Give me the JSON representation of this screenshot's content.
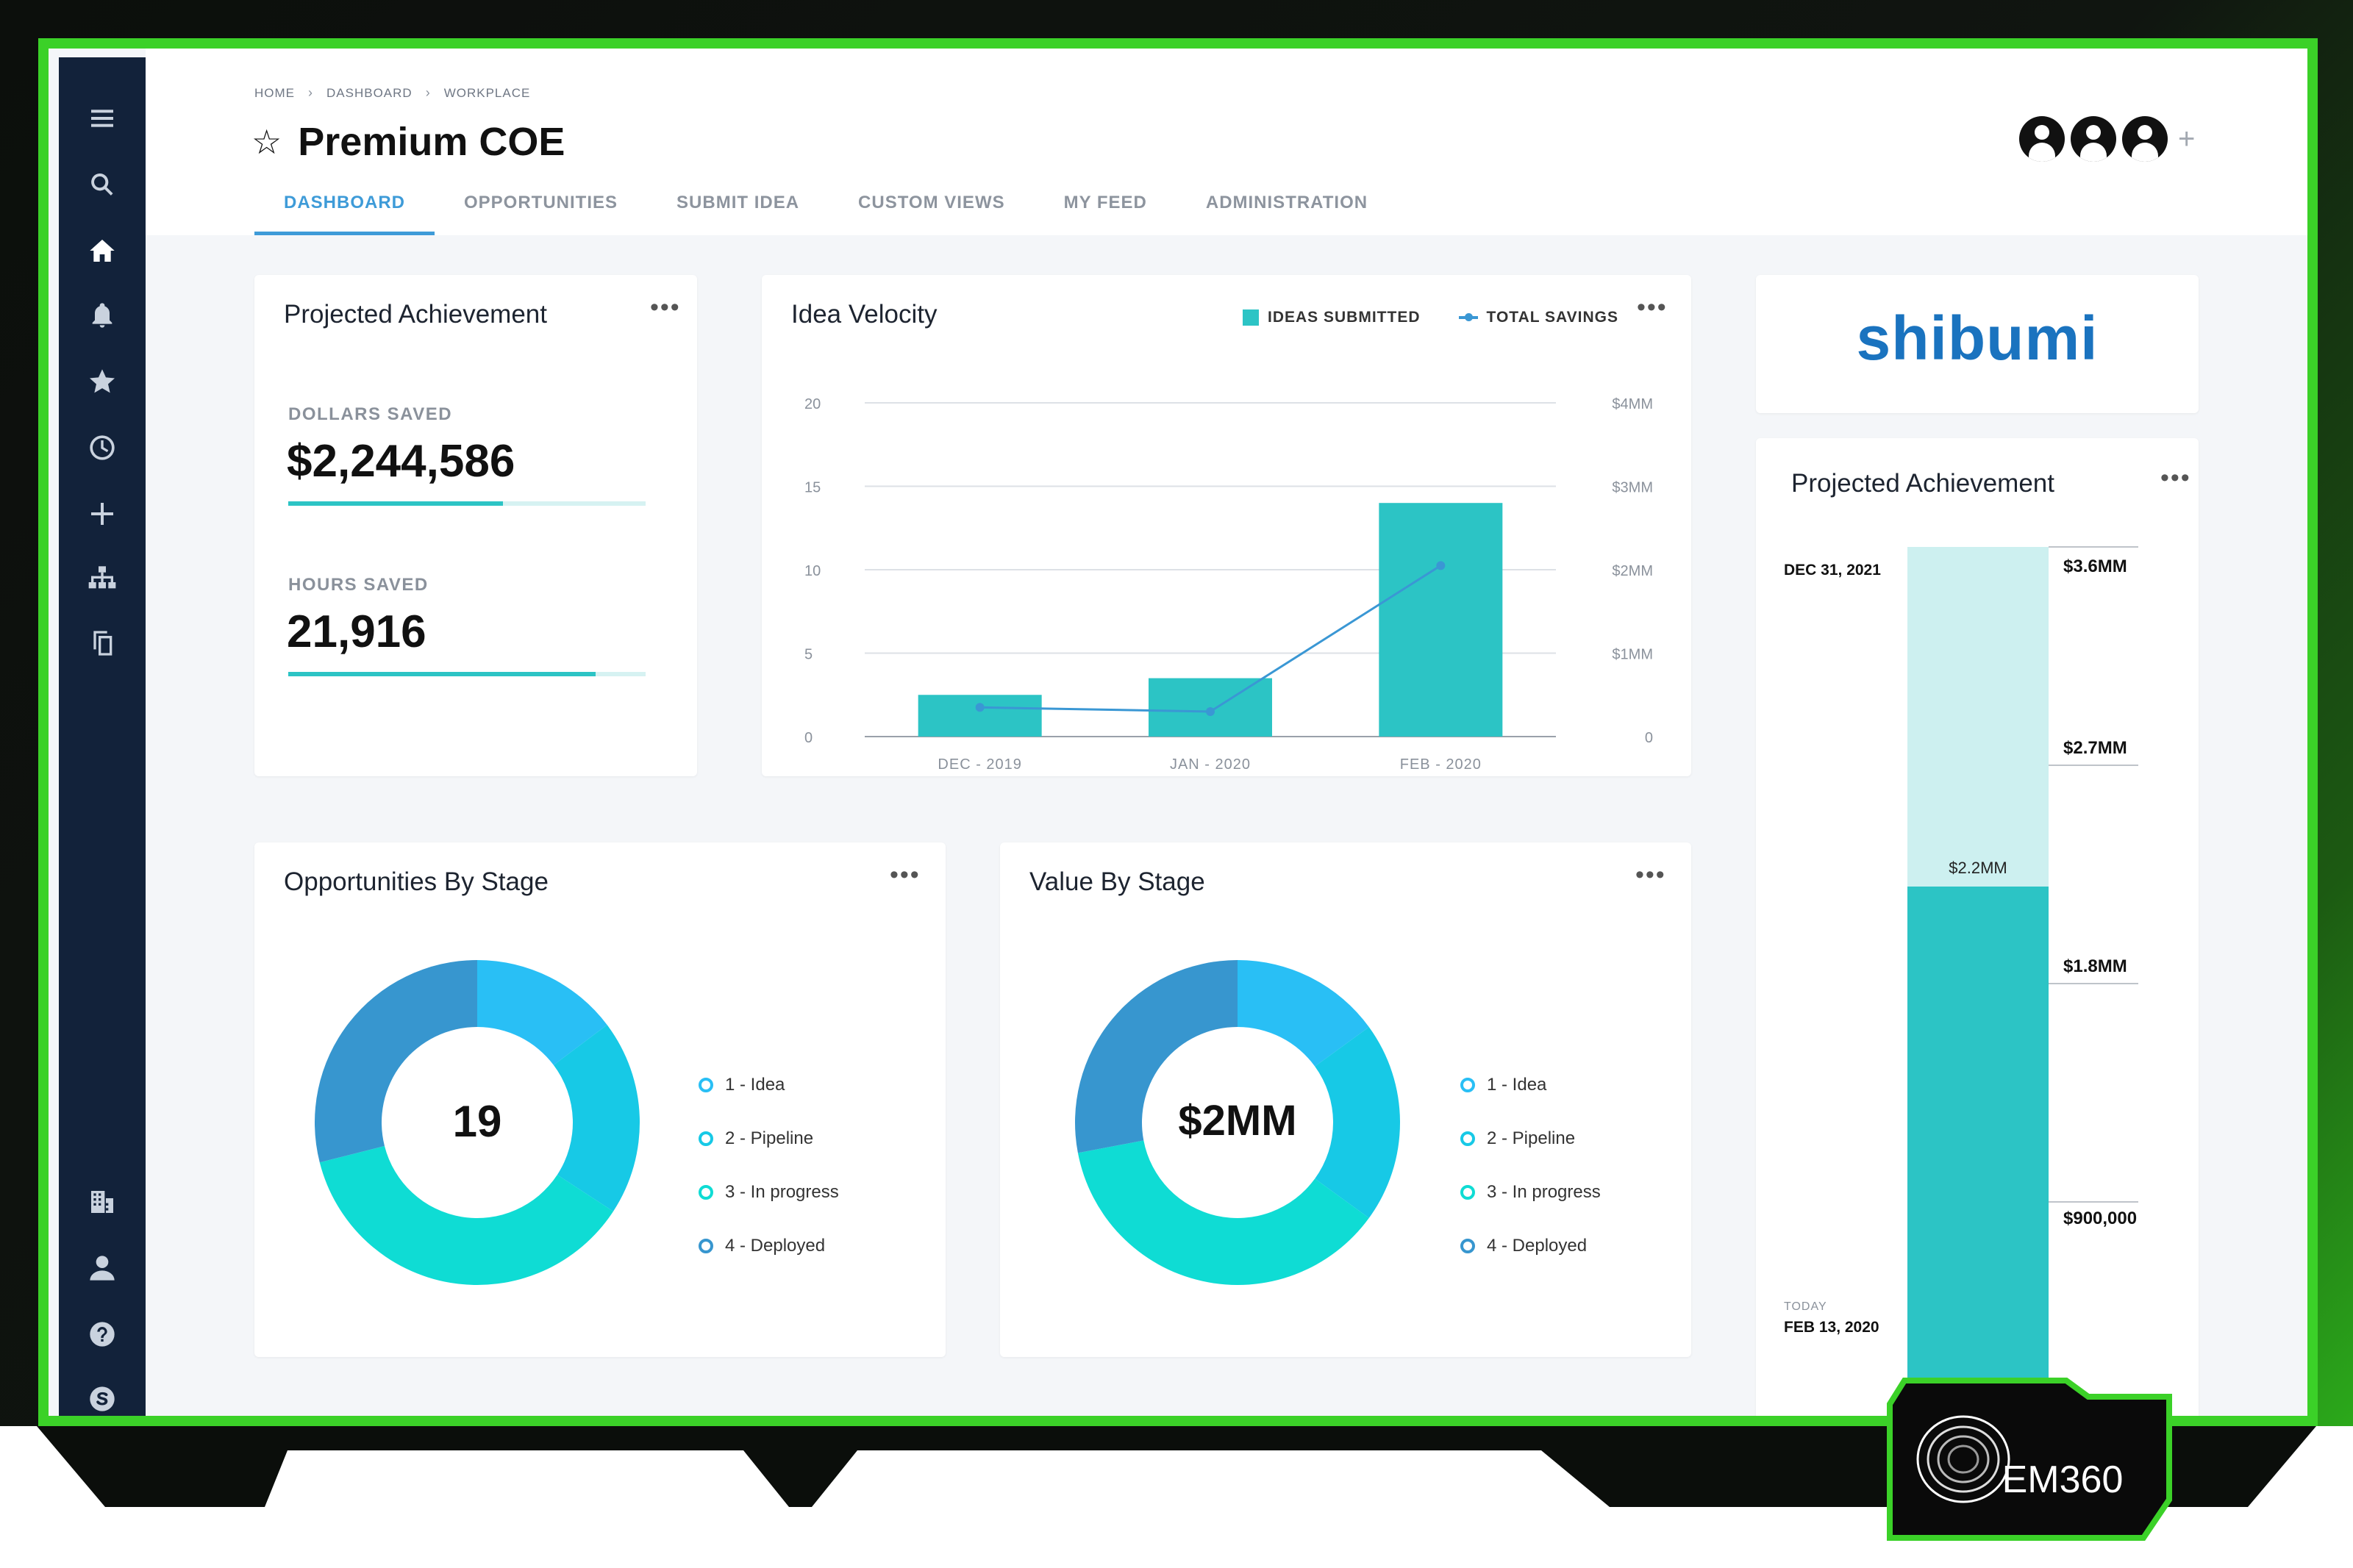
{
  "breadcrumb": [
    "HOME",
    "DASHBOARD",
    "WORKPLACE"
  ],
  "page_title": "Premium COE",
  "tabs": [
    "DASHBOARD",
    "OPPORTUNITIES",
    "SUBMIT IDEA",
    "CUSTOM VIEWS",
    "MY FEED",
    "ADMINISTRATION"
  ],
  "active_tab": "DASHBOARD",
  "sidebar_top_icons": [
    "menu-icon",
    "search-icon",
    "home-icon",
    "bell-icon",
    "star-icon",
    "clock-icon",
    "plus-icon",
    "org-chart-icon",
    "copy-icon"
  ],
  "sidebar_bottom_icons": [
    "building-icon",
    "user-icon",
    "help-icon",
    "skype-icon"
  ],
  "projected": {
    "title": "Projected Achievement",
    "dollars_label": "DOLLARS SAVED",
    "dollars_value": "$2,244,586",
    "dollars_progress": 0.6,
    "hours_label": "HOURS SAVED",
    "hours_value": "21,916",
    "hours_progress": 0.86
  },
  "velocity": {
    "title": "Idea Velocity",
    "legend_bar": "IDEAS SUBMITTED",
    "legend_line": "TOTAL SAVINGS"
  },
  "logo_text": "shibumi",
  "projected_right": {
    "title": "Projected Achievement",
    "target_date": "DEC 31, 2021",
    "today_label": "TODAY",
    "today_date": "FEB 13, 2020",
    "current_label": "$2.2MM",
    "scale_labels": [
      "$3.6MM",
      "$2.7MM",
      "$1.8MM",
      "$900,000"
    ],
    "target_value": 3.6,
    "current_value": 2.2
  },
  "opps_by_stage": {
    "title": "Opportunities By Stage",
    "center": "19"
  },
  "value_by_stage": {
    "title": "Value By Stage",
    "center": "$2MM"
  },
  "stage_legend": [
    "1 - Idea",
    "2 - Pipeline",
    "3 - In progress",
    "4 - Deployed"
  ],
  "colors": {
    "teal": "#2cc4c5",
    "line": "#3a97d4",
    "stage1": "#29bff5",
    "stage2": "#17c9e6",
    "stage3": "#0fdcd4",
    "stage4": "#3796cf",
    "accent": "#3bd128"
  },
  "badge_text": "EM360",
  "chart_data": [
    {
      "type": "bar",
      "title": "Idea Velocity",
      "categories": [
        "DEC - 2019",
        "JAN - 2020",
        "FEB - 2020"
      ],
      "series": [
        {
          "name": "IDEAS SUBMITTED",
          "type": "bar",
          "axis": "left",
          "values": [
            2.5,
            3.5,
            14
          ]
        },
        {
          "name": "TOTAL SAVINGS",
          "type": "line",
          "axis": "right",
          "values": [
            0.35,
            0.3,
            2.05
          ],
          "unit": "MM"
        }
      ],
      "ylim": [
        0,
        20
      ],
      "y_ticks": [
        "0",
        "5",
        "10",
        "15",
        "20"
      ],
      "y2lim": [
        0,
        4
      ],
      "y2_ticks": [
        "0",
        "$1MM",
        "$2MM",
        "$3MM",
        "$4MM"
      ],
      "legend": "top-right",
      "grid": true
    },
    {
      "type": "pie",
      "title": "Opportunities By Stage",
      "categories": [
        "1 - Idea",
        "2 - Pipeline",
        "3 - In progress",
        "4 - Deployed"
      ],
      "values": [
        2.8,
        3.7,
        7.0,
        5.5
      ],
      "center_label": "19"
    },
    {
      "type": "pie",
      "title": "Value By Stage",
      "categories": [
        "1 - Idea",
        "2 - Pipeline",
        "3 - In progress",
        "4 - Deployed"
      ],
      "values": [
        0.15,
        0.2,
        0.37,
        0.28
      ],
      "center_label": "$2MM"
    }
  ]
}
